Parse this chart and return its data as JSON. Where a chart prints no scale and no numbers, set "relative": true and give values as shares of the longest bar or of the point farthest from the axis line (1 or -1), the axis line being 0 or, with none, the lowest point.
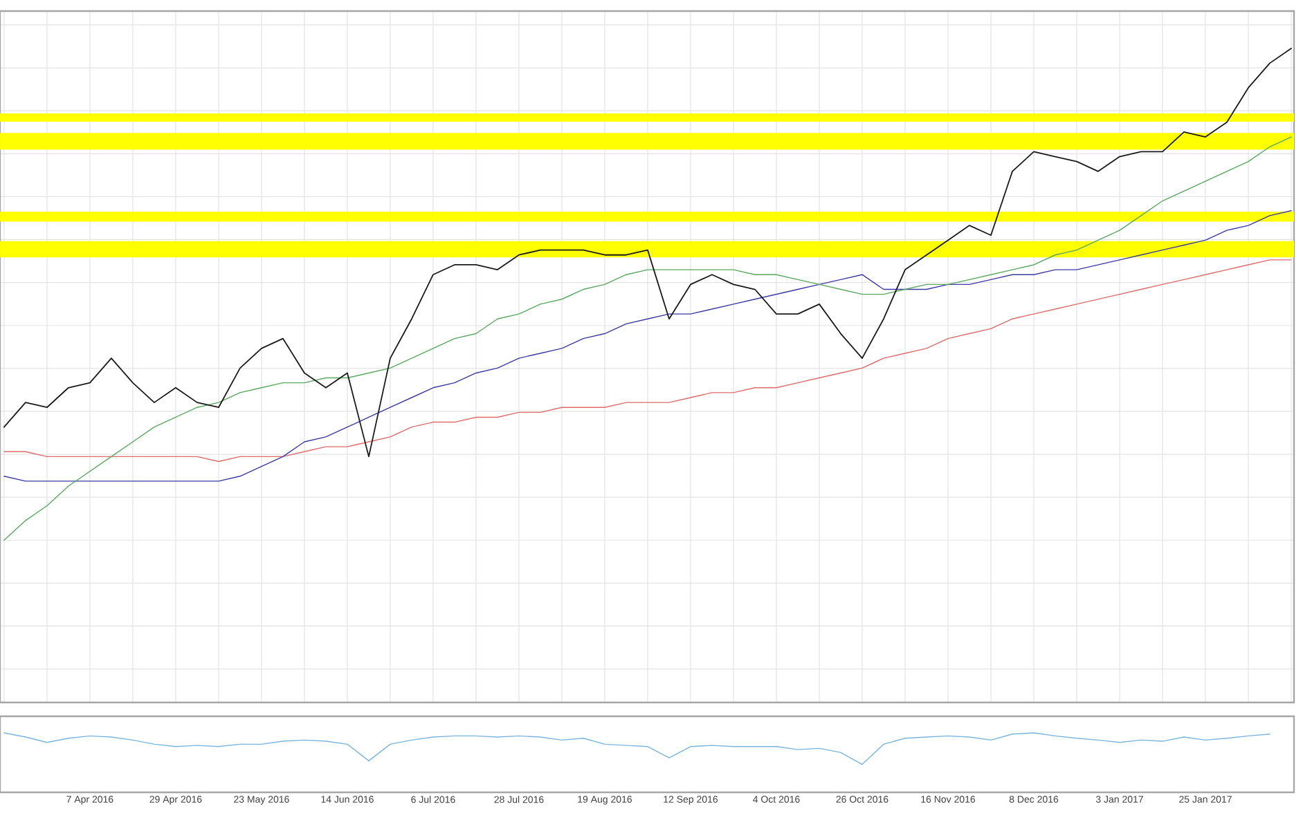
{
  "chart_data": [
    {
      "type": "line",
      "relative": true,
      "grid": true,
      "tick_labels": false,
      "categories": [
        null,
        null,
        null,
        null,
        null,
        null,
        null,
        null,
        null,
        null,
        null,
        null,
        null,
        null,
        null,
        null,
        null,
        null,
        null,
        null,
        null,
        null,
        null,
        null,
        null,
        null,
        null,
        null,
        null,
        null,
        null,
        null,
        null,
        null,
        null,
        null,
        null,
        null,
        null,
        null,
        null,
        null,
        null,
        null,
        null,
        null,
        null,
        null,
        null,
        null,
        null,
        null,
        null,
        null,
        null,
        null,
        null,
        null,
        null,
        null,
        null
      ],
      "series": [
        {
          "color": "#e06a6a",
          "values": [
            0.18,
            0.18,
            0.17,
            0.17,
            0.17,
            0.17,
            0.17,
            0.17,
            0.17,
            0.17,
            0.16,
            0.17,
            0.17,
            0.17,
            0.18,
            0.19,
            0.19,
            0.2,
            0.21,
            0.23,
            0.24,
            0.24,
            0.25,
            0.25,
            0.26,
            0.26,
            0.27,
            0.27,
            0.27,
            0.28,
            0.28,
            0.28,
            0.29,
            0.3,
            0.3,
            0.31,
            0.31,
            0.32,
            0.33,
            0.34,
            0.35,
            0.37,
            0.38,
            0.39,
            0.41,
            0.42,
            0.43,
            0.45,
            0.46,
            0.47,
            0.48,
            0.49,
            0.5,
            0.51,
            0.52,
            0.53,
            0.54,
            0.55,
            0.56,
            0.57,
            0.57
          ]
        },
        {
          "color": "#3a3aa8",
          "values": [
            0.13,
            0.12,
            0.12,
            0.12,
            0.12,
            0.12,
            0.12,
            0.12,
            0.12,
            0.12,
            0.12,
            0.13,
            0.15,
            0.17,
            0.2,
            0.21,
            0.23,
            0.25,
            0.27,
            0.29,
            0.31,
            0.32,
            0.34,
            0.35,
            0.37,
            0.38,
            0.39,
            0.41,
            0.42,
            0.44,
            0.45,
            0.46,
            0.46,
            0.47,
            0.48,
            0.49,
            0.5,
            0.51,
            0.52,
            0.53,
            0.54,
            0.51,
            0.51,
            0.51,
            0.52,
            0.52,
            0.53,
            0.54,
            0.54,
            0.55,
            0.55,
            0.56,
            0.57,
            0.58,
            0.59,
            0.6,
            0.61,
            0.63,
            0.64,
            0.66,
            0.67
          ]
        },
        {
          "color": "#5aa860",
          "values": [
            0,
            0.04,
            0.07,
            0.11,
            0.14,
            0.17,
            0.2,
            0.23,
            0.25,
            0.27,
            0.28,
            0.3,
            0.31,
            0.32,
            0.32,
            0.33,
            0.33,
            0.34,
            0.35,
            0.37,
            0.39,
            0.41,
            0.42,
            0.45,
            0.46,
            0.48,
            0.49,
            0.51,
            0.52,
            0.54,
            0.55,
            0.55,
            0.55,
            0.55,
            0.55,
            0.54,
            0.54,
            0.53,
            0.52,
            0.51,
            0.5,
            0.5,
            0.51,
            0.52,
            0.52,
            0.53,
            0.54,
            0.55,
            0.56,
            0.58,
            0.59,
            0.61,
            0.63,
            0.66,
            0.69,
            0.71,
            0.73,
            0.75,
            0.77,
            0.8,
            0.82
          ]
        },
        {
          "color": "#1a1a1a",
          "values": [
            0.23,
            0.28,
            0.27,
            0.31,
            0.32,
            0.37,
            0.32,
            0.28,
            0.31,
            0.28,
            0.27,
            0.35,
            0.39,
            0.41,
            0.34,
            0.31,
            0.34,
            0.17,
            0.37,
            0.45,
            0.54,
            0.56,
            0.56,
            0.55,
            0.58,
            0.59,
            0.59,
            0.59,
            0.58,
            0.58,
            0.59,
            0.45,
            0.52,
            0.54,
            0.52,
            0.51,
            0.46,
            0.46,
            0.48,
            0.42,
            0.37,
            0.45,
            0.55,
            0.58,
            0.61,
            0.64,
            0.62,
            0.75,
            0.79,
            0.78,
            0.77,
            0.75,
            0.78,
            0.79,
            0.79,
            0.83,
            0.82,
            0.85,
            0.92,
            0.97,
            1.0
          ]
        }
      ],
      "bands": [
        {
          "axis": "y",
          "from": 0.575,
          "to": 0.608,
          "color": "#ffff00"
        },
        {
          "axis": "y",
          "from": 0.648,
          "to": 0.668,
          "color": "#ffff00"
        },
        {
          "axis": "y",
          "from": 0.794,
          "to": 0.828,
          "color": "#ffff00"
        },
        {
          "axis": "y",
          "from": 0.851,
          "to": 0.868,
          "color": "#ffff00"
        }
      ]
    },
    {
      "type": "line",
      "relative": true,
      "tick_labels": "x",
      "categories": [
        null,
        null,
        null,
        null,
        "7 Apr 2016",
        null,
        null,
        null,
        "29 Apr 2016",
        null,
        null,
        null,
        "23 May 2016",
        null,
        null,
        null,
        "14 Jun 2016",
        null,
        null,
        null,
        "6 Jul 2016",
        null,
        null,
        null,
        "28 Jul 2016",
        null,
        null,
        null,
        "19 Aug 2016",
        null,
        null,
        null,
        "12 Sep 2016",
        null,
        null,
        null,
        "4 Oct 2016",
        null,
        null,
        null,
        "26 Oct 2016",
        null,
        null,
        null,
        "16 Nov 2016",
        null,
        null,
        null,
        "8 Dec 2016",
        null,
        null,
        null,
        "3 Jan 2017",
        null,
        null,
        null,
        "25 Jan 2017",
        null,
        null,
        null,
        null
      ],
      "series": [
        {
          "color": "#7ab4e0",
          "values": [
            1.0,
            0.93,
            0.84,
            0.91,
            0.95,
            0.93,
            0.88,
            0.81,
            0.77,
            0.79,
            0.77,
            0.81,
            0.81,
            0.86,
            0.88,
            0.86,
            0.81,
            0.53,
            0.81,
            0.88,
            0.93,
            0.95,
            0.95,
            0.93,
            0.95,
            0.93,
            0.88,
            0.91,
            0.81,
            0.79,
            0.77,
            0.58,
            0.77,
            0.79,
            0.77,
            0.77,
            0.77,
            0.72,
            0.74,
            0.67,
            0.47,
            0.81,
            0.91,
            0.93,
            0.95,
            0.93,
            0.88,
            0.98,
            1.0,
            0.95,
            0.91,
            0.88,
            0.84,
            0.88,
            0.86,
            0.93,
            0.88,
            0.91,
            0.95,
            0.98,
            null
          ]
        }
      ]
    }
  ]
}
